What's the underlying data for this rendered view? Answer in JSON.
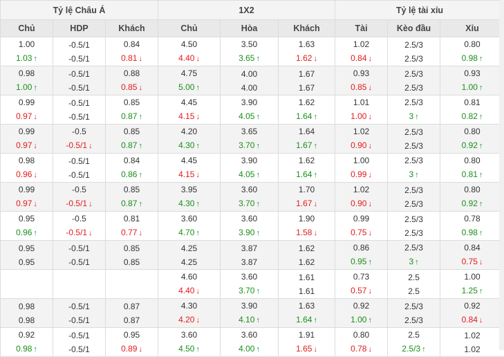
{
  "groups": [
    "Tỷ lệ Châu Á",
    "1X2",
    "Tỷ lệ tài xỉu"
  ],
  "columns": [
    "Chủ",
    "HDP",
    "Khách",
    "Chủ",
    "Hòa",
    "Khách",
    "Tài",
    "Kèo đầu",
    "Xỉu"
  ],
  "rows": [
    [
      [
        "1.00",
        "1.03",
        "u"
      ],
      [
        "-0.5/1",
        "-0.5/1",
        ""
      ],
      [
        "0.84",
        "0.81",
        "d"
      ],
      [
        "4.50",
        "4.40",
        "d"
      ],
      [
        "3.50",
        "3.65",
        "u"
      ],
      [
        "1.63",
        "1.62",
        "d"
      ],
      [
        "1.02",
        "0.84",
        "d"
      ],
      [
        "2.5/3",
        "2.5/3",
        ""
      ],
      [
        "0.80",
        "0.98",
        "u"
      ]
    ],
    [
      [
        "0.98",
        "1.00",
        "u"
      ],
      [
        "-0.5/1",
        "-0.5/1",
        ""
      ],
      [
        "0.88",
        "0.85",
        "d"
      ],
      [
        "4.75",
        "5.00",
        "u"
      ],
      [
        "4.00",
        "4.00",
        ""
      ],
      [
        "1.67",
        "1.67",
        ""
      ],
      [
        "0.93",
        "0.85",
        "d"
      ],
      [
        "2.5/3",
        "2.5/3",
        ""
      ],
      [
        "0.93",
        "1.00",
        "u"
      ]
    ],
    [
      [
        "0.99",
        "0.97",
        "d"
      ],
      [
        "-0.5/1",
        "-0.5/1",
        ""
      ],
      [
        "0.85",
        "0.87",
        "u"
      ],
      [
        "4.45",
        "4.15",
        "d"
      ],
      [
        "3.90",
        "4.05",
        "u"
      ],
      [
        "1.62",
        "1.64",
        "u"
      ],
      [
        "1.01",
        "1.00",
        "d"
      ],
      [
        "2.5/3",
        "3",
        "u"
      ],
      [
        "0.81",
        "0.82",
        "u"
      ]
    ],
    [
      [
        "0.99",
        "0.97",
        "d"
      ],
      [
        "-0.5",
        "-0.5/1",
        "d"
      ],
      [
        "0.85",
        "0.87",
        "u"
      ],
      [
        "4.20",
        "4.30",
        "u"
      ],
      [
        "3.65",
        "3.70",
        "u"
      ],
      [
        "1.64",
        "1.67",
        "u"
      ],
      [
        "1.02",
        "0.90",
        "d"
      ],
      [
        "2.5/3",
        "2.5/3",
        ""
      ],
      [
        "0.80",
        "0.92",
        "u"
      ]
    ],
    [
      [
        "0.98",
        "0.96",
        "d"
      ],
      [
        "-0.5/1",
        "-0.5/1",
        ""
      ],
      [
        "0.84",
        "0.86",
        "u"
      ],
      [
        "4.45",
        "4.15",
        "d"
      ],
      [
        "3.90",
        "4.05",
        "u"
      ],
      [
        "1.62",
        "1.64",
        "u"
      ],
      [
        "1.00",
        "0.99",
        "d"
      ],
      [
        "2.5/3",
        "3",
        "u"
      ],
      [
        "0.80",
        "0.81",
        "u"
      ]
    ],
    [
      [
        "0.99",
        "0.97",
        "d"
      ],
      [
        "-0.5",
        "-0.5/1",
        "d"
      ],
      [
        "0.85",
        "0.87",
        "u"
      ],
      [
        "3.95",
        "4.30",
        "u"
      ],
      [
        "3.60",
        "3.70",
        "u"
      ],
      [
        "1.70",
        "1.67",
        "d"
      ],
      [
        "1.02",
        "0.90",
        "d"
      ],
      [
        "2.5/3",
        "2.5/3",
        ""
      ],
      [
        "0.80",
        "0.92",
        "u"
      ]
    ],
    [
      [
        "0.95",
        "0.96",
        "u"
      ],
      [
        "-0.5",
        "-0.5/1",
        "d"
      ],
      [
        "0.81",
        "0.77",
        "d"
      ],
      [
        "3.60",
        "4.70",
        "u"
      ],
      [
        "3.60",
        "3.90",
        "u"
      ],
      [
        "1.90",
        "1.58",
        "d"
      ],
      [
        "0.99",
        "0.75",
        "d"
      ],
      [
        "2.5/3",
        "2.5/3",
        ""
      ],
      [
        "0.78",
        "0.98",
        "u"
      ]
    ],
    [
      [
        "0.95",
        "0.95",
        ""
      ],
      [
        "-0.5/1",
        "-0.5/1",
        ""
      ],
      [
        "0.85",
        "0.85",
        ""
      ],
      [
        "4.25",
        "4.25",
        ""
      ],
      [
        "3.87",
        "3.87",
        ""
      ],
      [
        "1.62",
        "1.62",
        ""
      ],
      [
        "0.86",
        "0.95",
        "u"
      ],
      [
        "2.5/3",
        "3",
        "u"
      ],
      [
        "0.84",
        "0.75",
        "d"
      ]
    ],
    [
      [
        "",
        "",
        ""
      ],
      [
        "",
        "",
        ""
      ],
      [
        "",
        "",
        ""
      ],
      [
        "4.60",
        "4.40",
        "d"
      ],
      [
        "3.60",
        "3.70",
        "u"
      ],
      [
        "1.61",
        "1.61",
        ""
      ],
      [
        "0.73",
        "0.57",
        "d"
      ],
      [
        "2.5",
        "2.5",
        ""
      ],
      [
        "1.00",
        "1.25",
        "u"
      ]
    ],
    [
      [
        "0.98",
        "0.98",
        ""
      ],
      [
        "-0.5/1",
        "-0.5/1",
        ""
      ],
      [
        "0.87",
        "0.87",
        ""
      ],
      [
        "4.30",
        "4.20",
        "d"
      ],
      [
        "3.90",
        "4.10",
        "u"
      ],
      [
        "1.63",
        "1.64",
        "u"
      ],
      [
        "0.92",
        "1.00",
        "u"
      ],
      [
        "2.5/3",
        "2.5/3",
        ""
      ],
      [
        "0.92",
        "0.84",
        "d"
      ]
    ],
    [
      [
        "0.92",
        "0.98",
        "u"
      ],
      [
        "-0.5/1",
        "-0.5/1",
        ""
      ],
      [
        "0.95",
        "0.89",
        "d"
      ],
      [
        "3.60",
        "4.50",
        "u"
      ],
      [
        "3.60",
        "4.00",
        "u"
      ],
      [
        "1.91",
        "1.65",
        "d"
      ],
      [
        "0.80",
        "0.78",
        "d"
      ],
      [
        "2.5",
        "2.5/3",
        "u"
      ],
      [
        "1.02",
        "1.02",
        ""
      ]
    ]
  ]
}
